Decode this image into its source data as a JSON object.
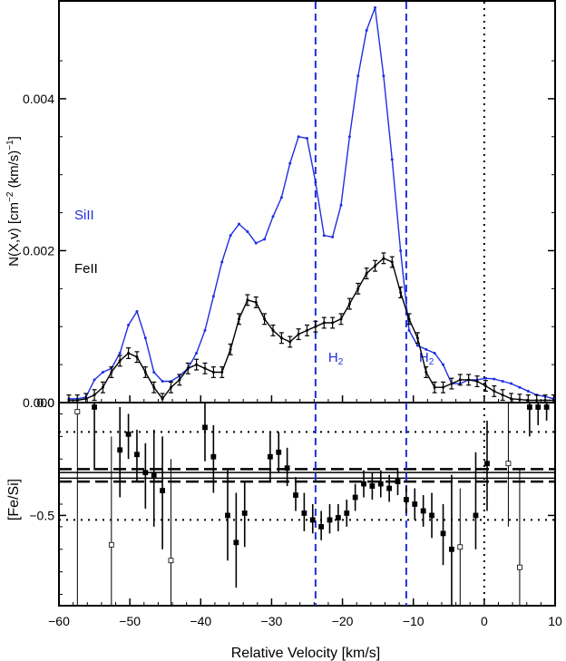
{
  "chart_data": [
    {
      "type": "line",
      "panel": "top",
      "ylabel": "N(X,v) [cm^-2 (km/s)^-1]",
      "ylabel_parts": {
        "base": "N(X,v) [cm",
        "exp1": "−2",
        "mid": " (km/s)",
        "exp2": "−1",
        "end": "]"
      },
      "xlim": [
        -60,
        10
      ],
      "ylim": [
        0,
        0.0053
      ],
      "yticks": [
        0.0,
        0.002,
        0.004
      ],
      "ytick_labels": [
        "0.000",
        "0.002",
        "0.004"
      ],
      "series": [
        {
          "name": "SiII",
          "color": "#1f2fe0",
          "x": [
            -58.6,
            -57.4,
            -56.2,
            -55.0,
            -53.8,
            -52.6,
            -51.4,
            -50.2,
            -49.0,
            -47.8,
            -46.6,
            -45.4,
            -44.2,
            -43.0,
            -41.8,
            -40.6,
            -39.4,
            -38.2,
            -37.0,
            -35.8,
            -34.6,
            -33.4,
            -32.2,
            -31.0,
            -29.8,
            -28.6,
            -27.4,
            -26.2,
            -25.0,
            -23.8,
            -22.6,
            -21.4,
            -20.2,
            -19.0,
            -17.8,
            -16.6,
            -15.4,
            -14.2,
            -13.0,
            -11.8,
            -10.6,
            -9.4,
            -8.2,
            -7.0,
            -5.8,
            -4.6,
            -3.4,
            -2.2,
            -1.0,
            0.2,
            1.4,
            2.6,
            3.8,
            5.0,
            6.2,
            7.4,
            8.6,
            9.8
          ],
          "y": [
            5e-05,
            5e-05,
            7e-05,
            0.0003,
            0.0004,
            0.00045,
            0.00065,
            0.00102,
            0.0012,
            0.00085,
            0.0004,
            0.00028,
            0.00028,
            0.00035,
            0.00045,
            0.00065,
            0.00095,
            0.0014,
            0.00185,
            0.0022,
            0.00235,
            0.00225,
            0.0021,
            0.00215,
            0.00245,
            0.0027,
            0.00315,
            0.0035,
            0.00348,
            0.0029,
            0.0022,
            0.00218,
            0.0026,
            0.0035,
            0.0043,
            0.0049,
            0.0052,
            0.0043,
            0.0032,
            0.002,
            0.00095,
            0.00075,
            0.0007,
            0.00065,
            0.0005,
            0.00025,
            0.00025,
            0.0003,
            0.0003,
            0.00032,
            0.00031,
            0.00028,
            0.00025,
            0.0002,
            0.00015,
            0.0001,
            8e-05,
            5e-05
          ]
        },
        {
          "name": "FeII",
          "color": "#000000",
          "x": [
            -58.6,
            -57.4,
            -56.2,
            -55.0,
            -53.8,
            -52.6,
            -51.4,
            -50.2,
            -49.0,
            -47.8,
            -46.6,
            -45.4,
            -44.2,
            -43.0,
            -41.8,
            -40.6,
            -39.4,
            -38.2,
            -37.0,
            -35.8,
            -34.6,
            -33.4,
            -32.2,
            -31.0,
            -29.8,
            -28.6,
            -27.4,
            -26.2,
            -25.0,
            -23.8,
            -22.6,
            -21.4,
            -20.2,
            -19.0,
            -17.8,
            -16.6,
            -15.4,
            -14.2,
            -13.0,
            -11.8,
            -10.6,
            -9.4,
            -8.2,
            -7.0,
            -5.8,
            -4.6,
            -3.4,
            -2.2,
            -1.0,
            0.2,
            1.4,
            2.6,
            3.8,
            5.0,
            6.2,
            7.4,
            8.6,
            9.8
          ],
          "y": [
            3e-05,
            3e-05,
            5e-05,
            0.0001,
            0.0002,
            0.0004,
            0.00055,
            0.00065,
            0.0006,
            0.0004,
            0.0002,
            5e-05,
            0.0002,
            0.0003,
            0.00045,
            0.0005,
            0.00045,
            0.0004,
            0.0004,
            0.0007,
            0.0011,
            0.00135,
            0.00132,
            0.0011,
            0.00095,
            0.00085,
            0.0008,
            0.0009,
            0.00095,
            0.001,
            0.00105,
            0.00105,
            0.0011,
            0.0013,
            0.0015,
            0.0017,
            0.0018,
            0.0019,
            0.00185,
            0.00145,
            0.0011,
            0.00085,
            0.0004,
            0.0002,
            0.0002,
            0.00025,
            0.0003,
            0.0003,
            0.00028,
            0.00022,
            0.00015,
            0.0001,
            5e-05,
            4e-05,
            3e-05,
            3e-05,
            3e-05,
            3e-05
          ],
          "yerr": 7e-05
        }
      ],
      "annotations": [
        {
          "text": "SiII",
          "color": "#1f2fe0"
        },
        {
          "text": "FeII",
          "color": "#000000"
        },
        {
          "text": "H2",
          "x": -23.8,
          "color": "#1f2fe0"
        },
        {
          "text": "H2",
          "x": -11.0,
          "color": "#1f2fe0"
        }
      ]
    },
    {
      "type": "scatter",
      "panel": "bottom",
      "xlabel": "Relative Velocity [km/s]",
      "ylabel": "[Fe/Si]",
      "xlim": [
        -60,
        10
      ],
      "ylim": [
        -0.9,
        0.0
      ],
      "xticks": [
        -60,
        -50,
        -40,
        -30,
        -20,
        -10,
        0,
        10
      ],
      "xtick_labels": [
        "−60",
        "−50",
        "−40",
        "−30",
        "−20",
        "−10",
        "0",
        "10"
      ],
      "yticks": [
        0.0,
        -0.5
      ],
      "ytick_labels": [
        "0.0",
        "−0.5"
      ],
      "points": [
        {
          "x": -57.4,
          "y": -0.04,
          "lo": -0.9,
          "hi": 0.0,
          "open": true
        },
        {
          "x": -55.0,
          "y": -0.02,
          "lo": -0.3,
          "hi": 0.0,
          "open": false
        },
        {
          "x": -52.6,
          "y": -0.63,
          "lo": -0.9,
          "hi": -0.15,
          "open": true
        },
        {
          "x": -51.4,
          "y": -0.21,
          "lo": -0.42,
          "hi": -0.02,
          "open": false
        },
        {
          "x": -50.2,
          "y": -0.14,
          "lo": -0.25,
          "hi": -0.05,
          "open": false
        },
        {
          "x": -49.0,
          "y": -0.23,
          "lo": -0.35,
          "hi": -0.12,
          "open": false
        },
        {
          "x": -47.8,
          "y": -0.31,
          "lo": -0.47,
          "hi": -0.18,
          "open": false
        },
        {
          "x": -46.6,
          "y": -0.32,
          "lo": -0.55,
          "hi": -0.12,
          "open": false
        },
        {
          "x": -45.4,
          "y": -0.39,
          "lo": -0.65,
          "hi": -0.15,
          "open": false
        },
        {
          "x": -44.2,
          "y": -0.7,
          "lo": -0.9,
          "hi": -0.25,
          "open": true
        },
        {
          "x": -39.4,
          "y": -0.11,
          "lo": -0.26,
          "hi": 0.0,
          "open": false
        },
        {
          "x": -38.2,
          "y": -0.24,
          "lo": -0.4,
          "hi": -0.1,
          "open": false
        },
        {
          "x": -36.2,
          "y": -0.5,
          "lo": -0.7,
          "hi": -0.3,
          "open": false
        },
        {
          "x": -35.0,
          "y": -0.62,
          "lo": -0.82,
          "hi": -0.4,
          "open": false
        },
        {
          "x": -33.8,
          "y": -0.49,
          "lo": -0.64,
          "hi": -0.35,
          "open": false
        },
        {
          "x": -30.2,
          "y": -0.24,
          "lo": -0.35,
          "hi": -0.13,
          "open": false
        },
        {
          "x": -29.0,
          "y": -0.22,
          "lo": -0.31,
          "hi": -0.13,
          "open": false
        },
        {
          "x": -27.8,
          "y": -0.29,
          "lo": -0.37,
          "hi": -0.2,
          "open": false
        },
        {
          "x": -26.6,
          "y": -0.41,
          "lo": -0.48,
          "hi": -0.33,
          "open": false
        },
        {
          "x": -25.4,
          "y": -0.49,
          "lo": -0.57,
          "hi": -0.4,
          "open": false
        },
        {
          "x": -24.2,
          "y": -0.52,
          "lo": -0.58,
          "hi": -0.45,
          "open": false
        },
        {
          "x": -23.0,
          "y": -0.55,
          "lo": -0.61,
          "hi": -0.48,
          "open": false
        },
        {
          "x": -21.8,
          "y": -0.52,
          "lo": -0.58,
          "hi": -0.45,
          "open": false
        },
        {
          "x": -20.6,
          "y": -0.51,
          "lo": -0.57,
          "hi": -0.45,
          "open": false
        },
        {
          "x": -19.4,
          "y": -0.49,
          "lo": -0.55,
          "hi": -0.43,
          "open": false
        },
        {
          "x": -18.2,
          "y": -0.42,
          "lo": -0.48,
          "hi": -0.36,
          "open": false
        },
        {
          "x": -17.0,
          "y": -0.36,
          "lo": -0.42,
          "hi": -0.3,
          "open": false
        },
        {
          "x": -15.8,
          "y": -0.37,
          "lo": -0.43,
          "hi": -0.31,
          "open": false
        },
        {
          "x": -14.6,
          "y": -0.36,
          "lo": -0.42,
          "hi": -0.3,
          "open": false
        },
        {
          "x": -13.4,
          "y": -0.38,
          "lo": -0.44,
          "hi": -0.32,
          "open": false
        },
        {
          "x": -12.2,
          "y": -0.35,
          "lo": -0.41,
          "hi": -0.29,
          "open": false
        },
        {
          "x": -11.0,
          "y": -0.43,
          "lo": -0.49,
          "hi": -0.37,
          "open": false
        },
        {
          "x": -9.8,
          "y": -0.45,
          "lo": -0.52,
          "hi": -0.38,
          "open": false
        },
        {
          "x": -8.6,
          "y": -0.48,
          "lo": -0.55,
          "hi": -0.41,
          "open": false
        },
        {
          "x": -7.4,
          "y": -0.5,
          "lo": -0.6,
          "hi": -0.4,
          "open": false
        },
        {
          "x": -5.8,
          "y": -0.58,
          "lo": -0.72,
          "hi": -0.45,
          "open": false
        },
        {
          "x": -4.6,
          "y": -0.65,
          "lo": -0.9,
          "hi": -0.32,
          "open": false
        },
        {
          "x": -3.4,
          "y": -0.64,
          "lo": -0.9,
          "hi": -0.38,
          "open": true
        },
        {
          "x": -1.2,
          "y": -0.5,
          "lo": -0.65,
          "hi": -0.22,
          "open": false
        },
        {
          "x": 0.4,
          "y": -0.27,
          "lo": -0.48,
          "hi": -0.08,
          "open": false
        },
        {
          "x": 3.4,
          "y": -0.27,
          "lo": -0.55,
          "hi": 0.0,
          "open": true
        },
        {
          "x": 5.0,
          "y": -0.73,
          "lo": -0.9,
          "hi": -0.3,
          "open": true
        },
        {
          "x": 6.4,
          "y": -0.02,
          "lo": -0.15,
          "hi": 0.0,
          "open": false
        },
        {
          "x": 7.6,
          "y": -0.02,
          "lo": -0.1,
          "hi": 0.0,
          "open": false
        },
        {
          "x": 8.8,
          "y": -0.02,
          "lo": -0.08,
          "hi": 0.0,
          "open": false
        }
      ],
      "reference_lines": [
        {
          "y": -0.13,
          "style": "dotted"
        },
        {
          "y": -0.31,
          "style": "solid"
        },
        {
          "y": -0.335,
          "style": "solid"
        },
        {
          "y": -0.295,
          "style": "dashed"
        },
        {
          "y": -0.35,
          "style": "dashed"
        },
        {
          "y": -0.52,
          "style": "dotted"
        }
      ]
    }
  ],
  "vertical_lines": [
    {
      "x": -23.8,
      "style": "dashed",
      "color": "#1f2fe0"
    },
    {
      "x": -11.0,
      "style": "dashed",
      "color": "#1f2fe0"
    },
    {
      "x": 0.0,
      "style": "dotted",
      "color": "#000000"
    }
  ]
}
